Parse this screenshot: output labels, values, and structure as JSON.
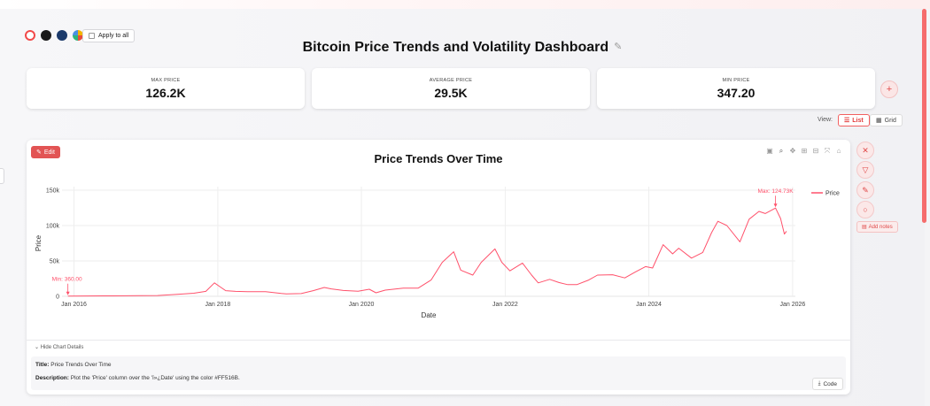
{
  "swatches": [
    {
      "name": "red-outline",
      "color": "#F24A4A"
    },
    {
      "name": "black",
      "color": "#1A1A1A"
    },
    {
      "name": "navy",
      "color": "#1C3A6B"
    },
    {
      "name": "multicolor",
      "color": "multi"
    }
  ],
  "apply_to_all_label": "Apply to all",
  "dashboard_title": "Bitcoin Price Trends and Volatility Dashboard",
  "kpis": [
    {
      "label": "MAX PRICE",
      "value": "126.2K"
    },
    {
      "label": "AVERAGE PRICE",
      "value": "29.5K"
    },
    {
      "label": "MIN PRICE",
      "value": "347.20"
    }
  ],
  "view": {
    "label": "View:",
    "list": "List",
    "grid": "Grid",
    "selected": "List"
  },
  "card": {
    "edit_label": "Edit",
    "hide_details_label": "Hide Chart Details",
    "details": {
      "title_label": "Title:",
      "title_value": "Price Trends Over Time",
      "description_label": "Description:",
      "description_value": "Plot the 'Price' column over the 'ï»¿Date' using the color #FF516B."
    },
    "code_label": "Code"
  },
  "side_tools": {
    "add_notes_label": "Add notes"
  },
  "accent_color": "#FF516B",
  "chart_data": {
    "type": "line",
    "title": "Price Trends Over Time",
    "xlabel": "Date",
    "ylabel": "Price",
    "x_ticks": [
      "Jan 2016",
      "Jan 2018",
      "Jan 2020",
      "Jan 2022",
      "Jan 2024",
      "Jan 2026"
    ],
    "y_ticks": [
      "0",
      "50k",
      "100k",
      "150k"
    ],
    "ylim": [
      0,
      150000
    ],
    "xlim": [
      "2015-11-01",
      "2026-01-15"
    ],
    "grid": true,
    "legend": "top-right",
    "series": [
      {
        "name": "Price",
        "color": "#FF516B",
        "points": [
          [
            "2015-12-01",
            360
          ],
          [
            "2016-06-01",
            600
          ],
          [
            "2016-12-01",
            900
          ],
          [
            "2017-03-01",
            1100
          ],
          [
            "2017-06-01",
            2600
          ],
          [
            "2017-09-01",
            4400
          ],
          [
            "2017-11-01",
            7000
          ],
          [
            "2017-12-15",
            19000
          ],
          [
            "2018-01-15",
            13000
          ],
          [
            "2018-02-10",
            8000
          ],
          [
            "2018-04-01",
            7000
          ],
          [
            "2018-06-01",
            6500
          ],
          [
            "2018-09-01",
            6500
          ],
          [
            "2018-11-20",
            4000
          ],
          [
            "2018-12-15",
            3400
          ],
          [
            "2019-03-01",
            3900
          ],
          [
            "2019-05-01",
            8000
          ],
          [
            "2019-06-26",
            12500
          ],
          [
            "2019-08-01",
            10500
          ],
          [
            "2019-10-01",
            8300
          ],
          [
            "2019-12-15",
            7200
          ],
          [
            "2020-02-10",
            10000
          ],
          [
            "2020-03-15",
            5000
          ],
          [
            "2020-05-01",
            8800
          ],
          [
            "2020-08-01",
            11500
          ],
          [
            "2020-10-15",
            11500
          ],
          [
            "2020-12-20",
            23000
          ],
          [
            "2021-02-15",
            48000
          ],
          [
            "2021-04-14",
            63000
          ],
          [
            "2021-05-20",
            37000
          ],
          [
            "2021-07-20",
            30000
          ],
          [
            "2021-09-01",
            48000
          ],
          [
            "2021-11-10",
            67000
          ],
          [
            "2021-12-15",
            48000
          ],
          [
            "2022-01-25",
            36000
          ],
          [
            "2022-03-30",
            47000
          ],
          [
            "2022-05-15",
            30000
          ],
          [
            "2022-06-18",
            19000
          ],
          [
            "2022-08-15",
            24000
          ],
          [
            "2022-10-01",
            19500
          ],
          [
            "2022-11-15",
            16500
          ],
          [
            "2022-12-31",
            16500
          ],
          [
            "2023-03-01",
            23000
          ],
          [
            "2023-04-15",
            30000
          ],
          [
            "2023-07-01",
            30500
          ],
          [
            "2023-09-01",
            26000
          ],
          [
            "2023-10-25",
            34500
          ],
          [
            "2023-12-15",
            42000
          ],
          [
            "2024-01-20",
            40000
          ],
          [
            "2024-03-14",
            73000
          ],
          [
            "2024-05-01",
            60000
          ],
          [
            "2024-06-01",
            68000
          ],
          [
            "2024-08-05",
            54000
          ],
          [
            "2024-10-01",
            62000
          ],
          [
            "2024-11-15",
            90000
          ],
          [
            "2024-12-17",
            106000
          ],
          [
            "2025-02-01",
            100000
          ],
          [
            "2025-04-08",
            77000
          ],
          [
            "2025-05-25",
            109000
          ],
          [
            "2025-07-14",
            120000
          ],
          [
            "2025-08-15",
            117000
          ],
          [
            "2025-10-06",
            124730
          ],
          [
            "2025-11-01",
            110000
          ],
          [
            "2025-11-20",
            88000
          ],
          [
            "2025-12-01",
            92000
          ]
        ]
      }
    ],
    "annotations": [
      {
        "text": "Min: 360.00",
        "x": "2015-12-01",
        "y": 360
      },
      {
        "text": "Max: 124.73K",
        "x": "2025-10-06",
        "y": 124730
      }
    ]
  }
}
